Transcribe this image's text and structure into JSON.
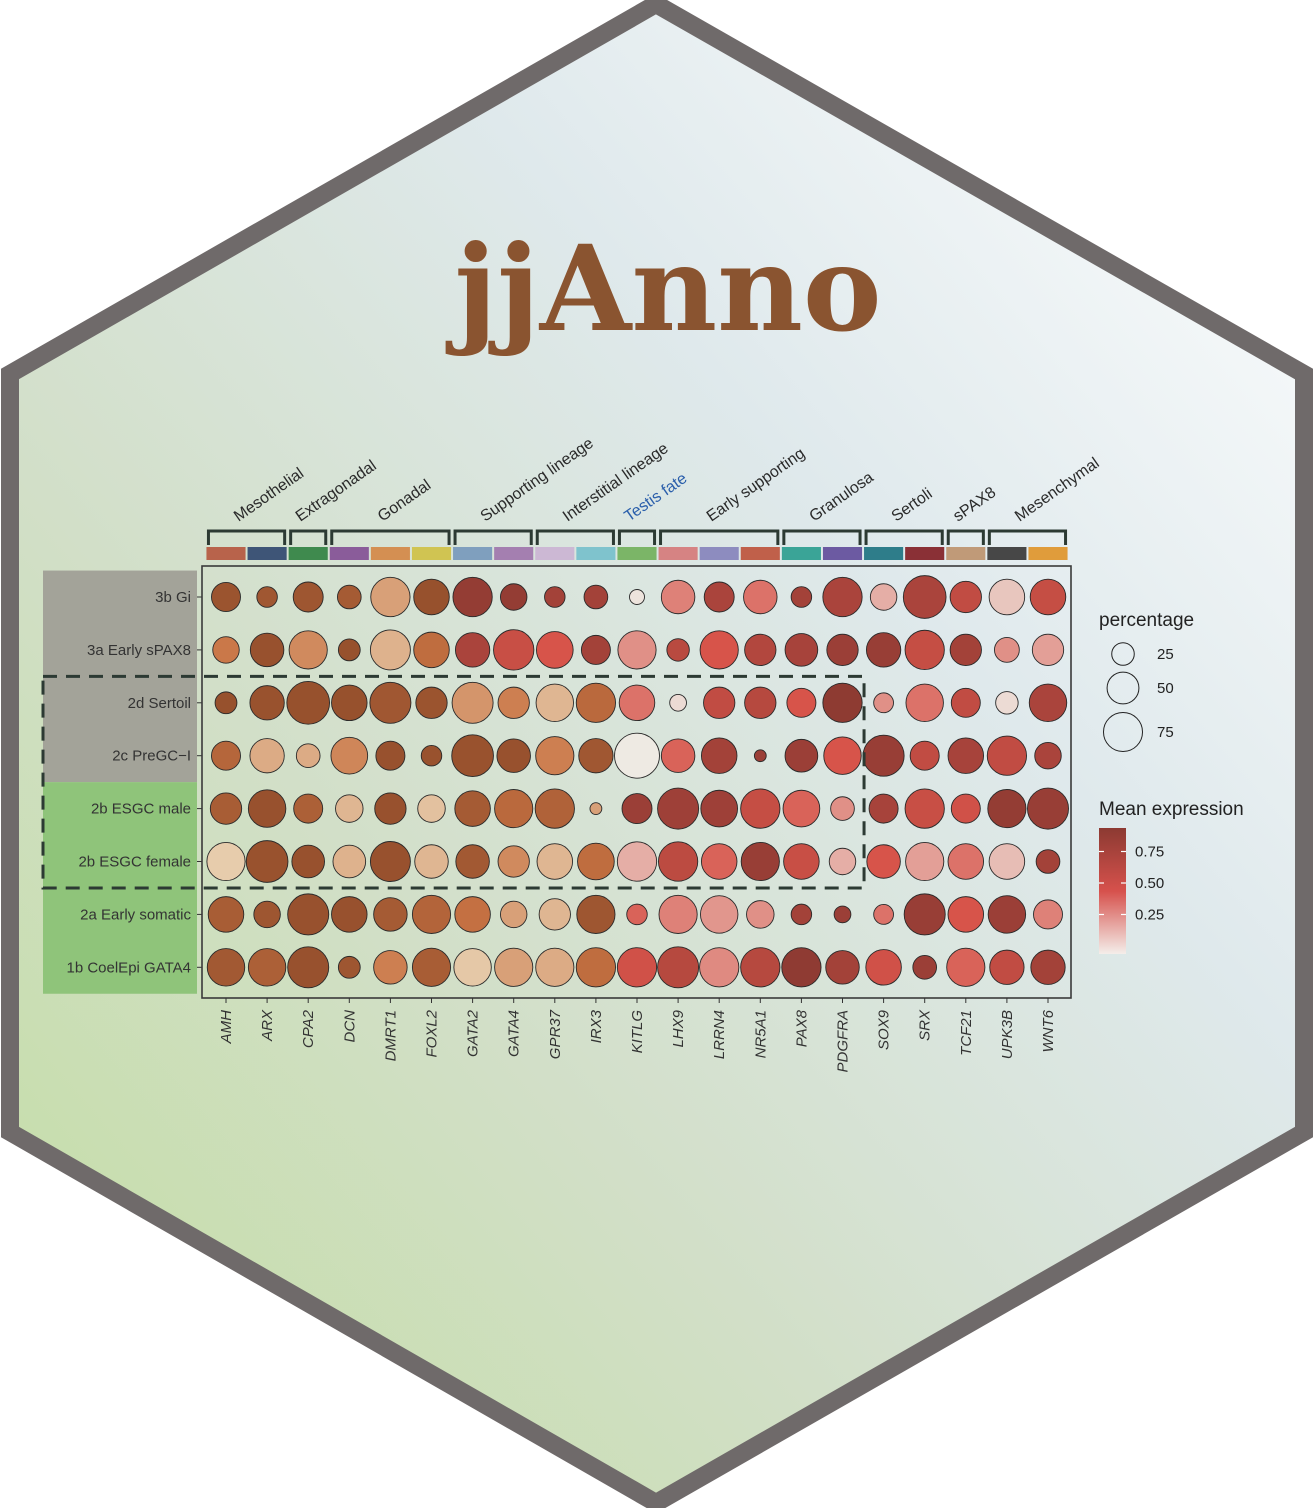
{
  "logo_title": "jjAnno",
  "colors": {
    "hex_border": "#6f6a6a",
    "title": "#8a5430",
    "testis_fate_label": "#2b5fab",
    "expr_low": "#eeeae3",
    "expr_mid": "#d7544a",
    "expr_high": "#8c3a32"
  },
  "chart_data": {
    "type": "dotplot",
    "genes": [
      "AMH",
      "ARX",
      "CPA2",
      "DCN",
      "DMRT1",
      "FOXL2",
      "GATA2",
      "GATA4",
      "GPR37",
      "IRX3",
      "KITLG",
      "LHX9",
      "LRRN4",
      "NR5A1",
      "PAX8",
      "PDGFRA",
      "SOX9",
      "SRX",
      "TCF21",
      "UPK3B",
      "WNT6"
    ],
    "cell_types": [
      "3b Gi",
      "3a Early sPAX8",
      "2d Sertoil",
      "2c PreGC−I",
      "2b ESGC male",
      "2b ESGC female",
      "2a Early somatic",
      "1b CoelEpi GATA4"
    ],
    "row_groups": [
      {
        "rows": [
          0,
          1,
          2,
          3
        ],
        "color": "#a3a399"
      },
      {
        "rows": [
          4,
          5,
          6,
          7
        ],
        "color": "#8fc47a"
      }
    ],
    "gene_groups": [
      {
        "label": "Mesothelial",
        "start": 0,
        "end": 1,
        "label_color": "#2a2a2a"
      },
      {
        "label": "Extragonadal",
        "start": 2,
        "end": 2,
        "label_color": "#2a2a2a"
      },
      {
        "label": "Gonadal",
        "start": 3,
        "end": 5,
        "label_color": "#2a2a2a"
      },
      {
        "label": "Supporting lineage",
        "start": 6,
        "end": 7,
        "label_color": "#2a2a2a"
      },
      {
        "label": "Interstitial lineage",
        "start": 8,
        "end": 9,
        "label_color": "#2a2a2a"
      },
      {
        "label": "Testis fate",
        "start": 10,
        "end": 10,
        "label_color": "#2b5fab"
      },
      {
        "label": "Early supporting",
        "start": 11,
        "end": 13,
        "label_color": "#2a2a2a"
      },
      {
        "label": "Granulosa",
        "start": 14,
        "end": 15,
        "label_color": "#2a2a2a"
      },
      {
        "label": "Sertoli",
        "start": 16,
        "end": 17,
        "label_color": "#2a2a2a"
      },
      {
        "label": "sPAX8",
        "start": 18,
        "end": 18,
        "label_color": "#2a2a2a"
      },
      {
        "label": "Mesenchymal",
        "start": 19,
        "end": 20,
        "label_color": "#2a2a2a"
      }
    ],
    "gene_strip_colors": [
      "#b8634b",
      "#3e5577",
      "#3f8a4e",
      "#8a5c9a",
      "#d48f52",
      "#d0c452",
      "#7f9fbe",
      "#a47fb0",
      "#ccb8d4",
      "#7fc3cd",
      "#7bb567",
      "#d68383",
      "#8d8cbf",
      "#c0604a",
      "#3aa497",
      "#6c5aa2",
      "#2e7d8a",
      "#8a3036",
      "#c09a78",
      "#474747",
      "#e09c3b"
    ],
    "legend_size": {
      "title": "percentage",
      "values": [
        25,
        50,
        75
      ]
    },
    "legend_color": {
      "title": "Mean expression",
      "ticks": [
        0.75,
        0.5,
        0.25
      ],
      "tick_labels": [
        "0.75",
        "0.50",
        "0.25"
      ]
    },
    "highlight_box": {
      "rows": [
        2,
        5
      ],
      "genes": [
        0,
        15
      ],
      "style": "dashed"
    },
    "percentage": [
      [
        30,
        15,
        32,
        20,
        55,
        45,
        55,
        25,
        15,
        20,
        8,
        40,
        32,
        40,
        15,
        55,
        25,
        65,
        35,
        45,
        45
      ],
      [
        25,
        40,
        52,
        17,
        57,
        45,
        42,
        58,
        48,
        30,
        52,
        18,
        52,
        35,
        38,
        35,
        42,
        55,
        35,
        22,
        35
      ],
      [
        17,
        42,
        65,
        45,
        60,
        35,
        60,
        35,
        50,
        55,
        45,
        10,
        35,
        35,
        30,
        55,
        14,
        50,
        30,
        18,
        50
      ],
      [
        30,
        42,
        20,
        48,
        30,
        15,
        62,
        40,
        52,
        42,
        72,
        40,
        45,
        5,
        38,
        50,
        60,
        30,
        45,
        55,
        25
      ],
      [
        35,
        50,
        30,
        27,
        35,
        27,
        45,
        52,
        55,
        5,
        32,
        60,
        48,
        55,
        48,
        20,
        30,
        55,
        30,
        52,
        60
      ],
      [
        52,
        62,
        38,
        38,
        57,
        40,
        40,
        35,
        45,
        48,
        55,
        55,
        45,
        52,
        45,
        25,
        40,
        52,
        45,
        45,
        20
      ],
      [
        45,
        25,
        60,
        45,
        40,
        52,
        45,
        25,
        35,
        52,
        15,
        52,
        50,
        27,
        15,
        10,
        14,
        60,
        45,
        50,
        30
      ],
      [
        50,
        50,
        60,
        17,
        40,
        52,
        50,
        52,
        52,
        55,
        55,
        60,
        55,
        55,
        55,
        40,
        45,
        20,
        52,
        42,
        42
      ]
    ],
    "expression": [
      [
        0.95,
        0.9,
        0.92,
        0.85,
        0.3,
        0.99,
        0.95,
        0.95,
        0.85,
        0.85,
        0.02,
        0.35,
        0.8,
        0.4,
        0.85,
        0.8,
        0.2,
        0.8,
        0.65,
        0.12,
        0.62
      ],
      [
        0.48,
        0.98,
        0.4,
        0.99,
        0.22,
        0.6,
        0.8,
        0.6,
        0.5,
        0.85,
        0.3,
        0.7,
        0.5,
        0.75,
        0.82,
        0.9,
        0.92,
        0.62,
        0.85,
        0.3,
        0.25
      ],
      [
        0.99,
        0.97,
        0.99,
        0.99,
        0.9,
        0.95,
        0.35,
        0.45,
        0.2,
        0.65,
        0.4,
        0.05,
        0.65,
        0.72,
        0.5,
        0.99,
        0.3,
        0.4,
        0.65,
        0.05,
        0.8
      ],
      [
        0.7,
        0.25,
        0.25,
        0.42,
        0.98,
        0.97,
        0.97,
        0.98,
        0.45,
        0.9,
        0.0,
        0.45,
        0.85,
        0.9,
        0.9,
        0.5,
        0.92,
        0.65,
        0.82,
        0.65,
        0.8
      ],
      [
        0.82,
        0.98,
        0.78,
        0.2,
        0.98,
        0.15,
        0.85,
        0.65,
        0.75,
        0.3,
        0.9,
        0.88,
        0.88,
        0.62,
        0.45,
        0.3,
        0.82,
        0.6,
        0.55,
        0.95,
        0.92
      ],
      [
        0.1,
        0.97,
        0.98,
        0.22,
        0.98,
        0.2,
        0.88,
        0.4,
        0.2,
        0.6,
        0.2,
        0.68,
        0.45,
        0.92,
        0.6,
        0.2,
        0.5,
        0.25,
        0.4,
        0.15,
        0.85
      ],
      [
        0.82,
        0.92,
        0.98,
        0.98,
        0.85,
        0.72,
        0.55,
        0.3,
        0.2,
        0.92,
        0.45,
        0.35,
        0.28,
        0.3,
        0.85,
        0.9,
        0.4,
        0.92,
        0.5,
        0.9,
        0.35
      ],
      [
        0.88,
        0.78,
        0.98,
        0.92,
        0.45,
        0.82,
        0.12,
        0.3,
        0.25,
        0.6,
        0.55,
        0.72,
        0.32,
        0.72,
        0.98,
        0.85,
        0.55,
        0.9,
        0.45,
        0.65,
        0.85
      ]
    ]
  }
}
